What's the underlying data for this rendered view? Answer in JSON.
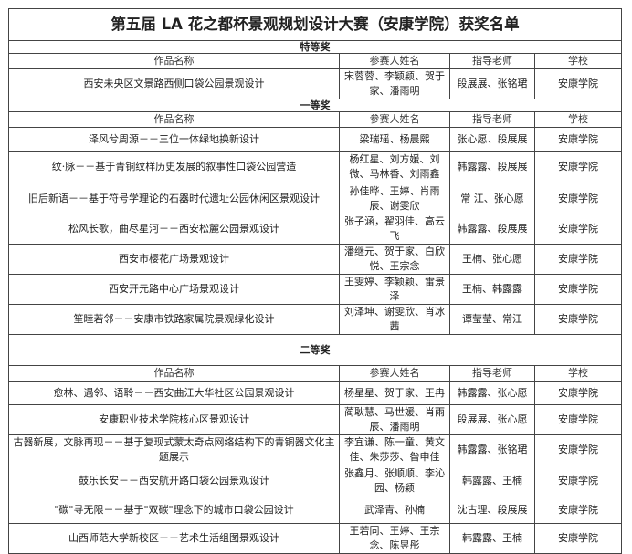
{
  "title": "第五届 LA 花之都杯景观规划设计大赛（安康学院）获奖名单",
  "headers": [
    "作品名称",
    "参赛人姓名",
    "指导老师",
    "学校"
  ],
  "sections": [
    {
      "name": "特等奖",
      "rows": [
        {
          "work": "西安未央区文景路西侧口袋公园景观设计",
          "members": "宋蓉蓉、李颖颖、贺于家、潘雨明",
          "advisors": "段展展、张铭珺",
          "school": "安康学院"
        }
      ]
    },
    {
      "name": "一等奖",
      "rows": [
        {
          "work": "泽风兮周源－－三位一体绿地换新设计",
          "members": "梁瑞瑶、杨晨熙",
          "advisors": "张心愿、段展展",
          "school": "安康学院"
        },
        {
          "work": "纹·脉－－基于青铜纹样历史发展的叙事性口袋公园营造",
          "members": "杨红星、刘方媛、刘微、马林香、刘雨鑫",
          "advisors": "韩露露、段展展",
          "school": "安康学院"
        },
        {
          "work": "旧后新语－－基于符号学理论的石器时代遗址公园休闲区景观设计",
          "members": "孙佳晔、王婷、肖雨辰、谢雯欣",
          "advisors": "常 江、张心愿",
          "school": "安康学院"
        },
        {
          "work": "松风长歌，曲尽星河－－西安松麓公园景观设计",
          "members": "张子涵，翟羽佳、高云飞",
          "advisors": "韩露露、段展展",
          "school": "安康学院"
        },
        {
          "work": "西安市樱花广场景观设计",
          "members": "潘继元、贺于家、白欣悦、王宗念",
          "advisors": "王楠、张心愿",
          "school": "安康学院"
        },
        {
          "work": "西安开元路中心广场景观设计",
          "members": "王雯婷、李颖颖、雷景泽",
          "advisors": "王楠、韩露露",
          "school": "安康学院"
        },
        {
          "work": "笙睦若邻－－安康市铁路家属院景观绿化设计",
          "members": "刘泽坤、谢雯欣、肖冰茜",
          "advisors": "谭莹莹、常江",
          "school": "安康学院"
        }
      ]
    },
    {
      "name": "二等奖",
      "rows": [
        {
          "work": "愈林、遇邻、语聆－－西安曲江大华社区公园景观设计",
          "members": "杨星星、贺于家、王冉",
          "advisors": "韩露露、张心愿",
          "school": "安康学院"
        },
        {
          "work": "安康职业技术学院核心区景观设计",
          "members": "蔺耿慧、马世媛、肖雨辰、潘雨明",
          "advisors": "段展展、张心愿",
          "school": "安康学院"
        },
        {
          "work": "古器新展，文脉再现－－基于复现式蒙太奇点网络结构下的青铜器文化主题展示",
          "members": "李宜谦、陈一童、黄文佳、朱莎莎、昝申佳",
          "advisors": "韩露露、张铭珺",
          "school": "安康学院"
        },
        {
          "work": "鼓乐长安－－西安航开路口袋公园景观设计",
          "members": "张鑫月、张顺顺、李沁园、杨颖",
          "advisors": "韩露露、王楠",
          "school": "安康学院"
        },
        {
          "work": "\"碳\"寻无限－－基于\"双碳\"理念下的城市口袋公园设计",
          "members": "武泽青、孙楠",
          "advisors": "沈古理、段展展",
          "school": "安康学院"
        },
        {
          "work": "山西师范大学新校区－－艺术生活组图景观设计",
          "members": "王若同、王婷、王宗念、陈昱彤",
          "advisors": "韩露露、王楠",
          "school": "安康学院"
        }
      ]
    }
  ]
}
